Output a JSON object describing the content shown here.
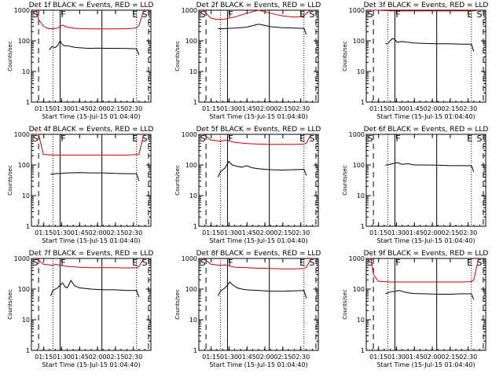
{
  "colors": {
    "events": "#000000",
    "lld": "#cc0000",
    "frame": "#000000"
  },
  "shared": {
    "xlabel": "Start Time (15-Jul-15 01:04:40)",
    "ylabel": "Counts/sec",
    "x_tick_labels": [
      "01:15",
      "01:30",
      "01:45",
      "02:00",
      "02:15",
      "02:30"
    ],
    "y_tick_labels": [
      "1",
      "10",
      "100",
      "1000"
    ],
    "marker_labels": {
      "S": "S",
      "F": "F",
      "E": "E"
    }
  },
  "chart_data": [
    {
      "type": "line",
      "title": "Det 1f BLACK = Events, RED = LLD",
      "xlabel": "Start Time (15-Jul-15 01:04:40)",
      "ylabel": "Counts/sec",
      "x_unit": "minutes after 01:04:40",
      "xlim": [
        0,
        100
      ],
      "ylim": [
        1,
        1000
      ],
      "yscale": "log",
      "markers": {
        "dashed": [
          6,
          98
        ],
        "dotted": [
          18,
          88
        ],
        "solid": [
          24,
          59
        ]
      },
      "marker_labels_shown": [
        "S",
        "F",
        "E",
        "S"
      ],
      "series": [
        {
          "name": "LLD",
          "color": "red",
          "x": [
            4,
            6,
            10,
            14,
            18,
            22,
            26,
            30,
            35,
            40,
            50,
            60,
            70,
            80,
            85,
            88,
            90,
            94
          ],
          "values": [
            1000,
            500,
            300,
            250,
            250,
            260,
            330,
            280,
            260,
            250,
            245,
            245,
            245,
            250,
            255,
            270,
            320,
            1000
          ]
        },
        {
          "name": "Events",
          "color": "black",
          "x": [
            15,
            17,
            20,
            22,
            24,
            26,
            28,
            30,
            33,
            36,
            40,
            45,
            50,
            55,
            60,
            70,
            80,
            88,
            90
          ],
          "values": [
            50,
            65,
            60,
            72,
            100,
            75,
            68,
            70,
            65,
            62,
            60,
            58,
            57,
            58,
            57,
            57,
            56,
            55,
            35
          ]
        }
      ]
    },
    {
      "type": "line",
      "title": "Det 2f BLACK = Events, RED = LLD",
      "xlabel": "Start Time (15-Jul-15 01:04:40)",
      "ylabel": "Counts/sec",
      "x_unit": "minutes after 01:04:40",
      "xlim": [
        0,
        100
      ],
      "ylim": [
        1,
        1000
      ],
      "yscale": "log",
      "markers": {
        "dashed": [
          6,
          98
        ],
        "dotted": [
          18,
          88
        ],
        "solid": [
          24,
          59
        ]
      },
      "marker_labels_shown": [
        "S",
        "F",
        "E",
        "S"
      ],
      "series": [
        {
          "name": "LLD",
          "color": "red",
          "x": [
            4,
            6,
            10,
            15,
            20,
            30,
            40,
            50,
            55,
            60,
            70,
            80,
            85,
            88,
            90,
            94
          ],
          "values": [
            1000,
            800,
            550,
            500,
            500,
            600,
            800,
            1000,
            900,
            800,
            650,
            600,
            620,
            650,
            800,
            1000
          ]
        },
        {
          "name": "Events",
          "color": "black",
          "x": [
            16,
            20,
            30,
            40,
            50,
            55,
            60,
            70,
            80,
            88,
            90
          ],
          "values": [
            250,
            250,
            260,
            280,
            350,
            320,
            290,
            270,
            260,
            255,
            160
          ]
        }
      ]
    },
    {
      "type": "line",
      "title": "Det 3f BLACK = Events, RED = LLD",
      "xlabel": "Start Time (15-Jul-15 01:04:40)",
      "ylabel": "Counts/sec",
      "x_unit": "minutes after 01:04:40",
      "xlim": [
        0,
        100
      ],
      "ylim": [
        1,
        1000
      ],
      "yscale": "log",
      "markers": {
        "dashed": [
          6,
          98
        ],
        "dotted": [
          18,
          88
        ],
        "solid": [
          24,
          59
        ]
      },
      "marker_labels_shown": [
        "S",
        "F",
        "E",
        "S"
      ],
      "series": [
        {
          "name": "LLD",
          "color": "red",
          "x": [
            4,
            10,
            20,
            40,
            60,
            80,
            90,
            94
          ],
          "values": [
            1000,
            1000,
            950,
            950,
            950,
            950,
            950,
            1000
          ]
        },
        {
          "name": "Events",
          "color": "black",
          "x": [
            16,
            18,
            20,
            22,
            24,
            26,
            30,
            35,
            40,
            50,
            60,
            70,
            80,
            88,
            90
          ],
          "values": [
            80,
            80,
            100,
            120,
            110,
            90,
            95,
            90,
            85,
            82,
            80,
            80,
            78,
            78,
            45
          ]
        }
      ]
    },
    {
      "type": "line",
      "title": "Det 4f BLACK = Events, RED = LLD",
      "xlabel": "Start Time (15-Jul-15 01:04:40)",
      "ylabel": "Counts/sec",
      "x_unit": "minutes after 01:04:40",
      "xlim": [
        0,
        100
      ],
      "ylim": [
        1,
        1000
      ],
      "yscale": "log",
      "markers": {
        "dashed": [
          6,
          98
        ],
        "dotted": [
          18,
          88
        ],
        "solid": [
          24,
          59
        ]
      },
      "marker_labels_shown": [
        "S",
        "F",
        "E",
        "S"
      ],
      "series": [
        {
          "name": "LLD",
          "color": "red",
          "x": [
            4,
            6,
            10,
            20,
            40,
            60,
            80,
            90,
            94
          ],
          "values": [
            1000,
            1000,
            220,
            210,
            210,
            210,
            210,
            220,
            1000
          ]
        },
        {
          "name": "Events",
          "color": "black",
          "x": [
            16,
            20,
            30,
            40,
            50,
            60,
            70,
            80,
            88,
            90
          ],
          "values": [
            50,
            52,
            55,
            56,
            55,
            55,
            53,
            52,
            52,
            30
          ]
        }
      ]
    },
    {
      "type": "line",
      "title": "Det 5f BLACK = Events, RED = LLD",
      "xlabel": "Start Time (15-Jul-15 01:04:40)",
      "ylabel": "Counts/sec",
      "x_unit": "minutes after 01:04:40",
      "xlim": [
        0,
        100
      ],
      "ylim": [
        1,
        1000
      ],
      "yscale": "log",
      "markers": {
        "dashed": [
          6,
          98
        ],
        "dotted": [
          18,
          88
        ],
        "solid": [
          24,
          59
        ]
      },
      "marker_labels_shown": [
        "S",
        "F",
        "E",
        "S"
      ],
      "series": [
        {
          "name": "LLD",
          "color": "red",
          "x": [
            4,
            10,
            18,
            22,
            26,
            30,
            40,
            50,
            60,
            70,
            80,
            88,
            90,
            94
          ],
          "values": [
            1000,
            650,
            600,
            650,
            600,
            550,
            500,
            480,
            470,
            470,
            470,
            480,
            520,
            1000
          ]
        },
        {
          "name": "Events",
          "color": "black",
          "x": [
            16,
            18,
            22,
            25,
            28,
            32,
            36,
            40,
            45,
            50,
            60,
            70,
            80,
            88,
            90
          ],
          "values": [
            40,
            60,
            80,
            130,
            100,
            90,
            85,
            95,
            80,
            75,
            70,
            68,
            70,
            72,
            45
          ]
        }
      ]
    },
    {
      "type": "line",
      "title": "Det 6f BLACK = Events, RED = LLD",
      "xlabel": "Start Time (15-Jul-15 01:04:40)",
      "ylabel": "Counts/sec",
      "x_unit": "minutes after 01:04:40",
      "xlim": [
        0,
        100
      ],
      "ylim": [
        1,
        1000
      ],
      "yscale": "log",
      "markers": {
        "dashed": [
          6,
          98
        ],
        "dotted": [
          18,
          88
        ],
        "solid": [
          24,
          59
        ]
      },
      "marker_labels_shown": [
        "S",
        "F",
        "E",
        "S"
      ],
      "series": [
        {
          "name": "Events",
          "color": "black",
          "x": [
            16,
            18,
            22,
            26,
            30,
            35,
            40,
            50,
            60,
            70,
            80,
            88,
            90
          ],
          "values": [
            100,
            100,
            110,
            120,
            105,
            110,
            100,
            100,
            98,
            95,
            95,
            95,
            60
          ]
        }
      ]
    },
    {
      "type": "line",
      "title": "Det 7f BLACK = Events, RED = LLD",
      "xlabel": "Start Time (15-Jul-15 01:04:40)",
      "ylabel": "Counts/sec",
      "x_unit": "minutes after 01:04:40",
      "xlim": [
        0,
        100
      ],
      "ylim": [
        1,
        1000
      ],
      "yscale": "log",
      "markers": {
        "dashed": [
          6,
          98
        ],
        "dotted": [
          18,
          88
        ],
        "solid": [
          24,
          59
        ]
      },
      "marker_labels_shown": [
        "S",
        "F",
        "E",
        "S"
      ],
      "series": [
        {
          "name": "LLD",
          "color": "red",
          "x": [
            4,
            10,
            18,
            20,
            24,
            30,
            40,
            50,
            60,
            70,
            80,
            88,
            90,
            94
          ],
          "values": [
            1000,
            650,
            600,
            650,
            600,
            550,
            520,
            500,
            500,
            500,
            490,
            500,
            550,
            1000
          ]
        },
        {
          "name": "Events",
          "color": "black",
          "x": [
            16,
            18,
            20,
            22,
            26,
            28,
            30,
            33,
            36,
            40,
            50,
            60,
            70,
            80,
            88,
            90
          ],
          "values": [
            60,
            90,
            100,
            110,
            160,
            120,
            110,
            190,
            130,
            110,
            100,
            95,
            95,
            90,
            90,
            55
          ]
        }
      ]
    },
    {
      "type": "line",
      "title": "Det 8f BLACK = Events, RED = LLD",
      "xlabel": "Start Time (15-Jul-15 01:04:40)",
      "ylabel": "Counts/sec",
      "x_unit": "minutes after 01:04:40",
      "xlim": [
        0,
        100
      ],
      "ylim": [
        1,
        1000
      ],
      "yscale": "log",
      "markers": {
        "dashed": [
          6,
          98
        ],
        "dotted": [
          18,
          88
        ],
        "solid": [
          24,
          59
        ]
      },
      "marker_labels_shown": [
        "S",
        "F",
        "E",
        "S"
      ],
      "series": [
        {
          "name": "LLD",
          "color": "red",
          "x": [
            4,
            10,
            18,
            22,
            26,
            30,
            40,
            50,
            60,
            70,
            80,
            88,
            90,
            94
          ],
          "values": [
            1000,
            650,
            600,
            620,
            560,
            520,
            500,
            480,
            470,
            460,
            460,
            470,
            520,
            1000
          ]
        },
        {
          "name": "Events",
          "color": "black",
          "x": [
            16,
            18,
            22,
            26,
            28,
            32,
            36,
            40,
            50,
            60,
            70,
            80,
            88,
            90
          ],
          "values": [
            60,
            85,
            110,
            170,
            140,
            110,
            100,
            95,
            90,
            85,
            85,
            88,
            90,
            50
          ]
        }
      ]
    },
    {
      "type": "line",
      "title": "Det 9f BLACK = Events, RED = LLD",
      "xlabel": "Start Time (15-Jul-15 01:04:40)",
      "ylabel": "Counts/sec",
      "x_unit": "minutes after 01:04:40",
      "xlim": [
        0,
        100
      ],
      "ylim": [
        1,
        1000
      ],
      "yscale": "log",
      "markers": {
        "dashed": [
          6,
          98
        ],
        "dotted": [
          18,
          88
        ],
        "solid": [
          24,
          59
        ]
      },
      "marker_labels_shown": [
        "S",
        "F",
        "E",
        "S"
      ],
      "series": [
        {
          "name": "LLD",
          "color": "red",
          "x": [
            4,
            6,
            10,
            20,
            40,
            60,
            80,
            88,
            90,
            94
          ],
          "values": [
            1000,
            300,
            180,
            170,
            170,
            170,
            170,
            175,
            200,
            1000
          ]
        },
        {
          "name": "Events",
          "color": "black",
          "x": [
            16,
            20,
            24,
            28,
            32,
            36,
            40,
            50,
            60,
            70,
            80,
            88,
            90
          ],
          "values": [
            70,
            80,
            85,
            90,
            80,
            75,
            72,
            70,
            68,
            68,
            70,
            70,
            45
          ]
        }
      ]
    }
  ]
}
